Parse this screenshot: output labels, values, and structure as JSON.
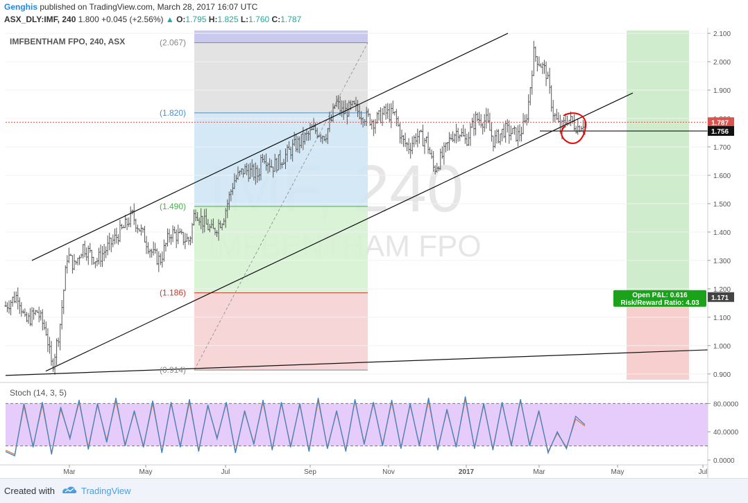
{
  "header": {
    "author": "Genghis",
    "published": " published on TradingView.com, March 28, 2017 16:07 UTC",
    "symbol": "ASX_DLY:IMF, 240",
    "last": "1.800",
    "change": "+0.045 (+2.56%)",
    "open_label": "O:",
    "open": "1.795",
    "high_label": "H:",
    "high": "1.825",
    "low_label": "L:",
    "low": "1.760",
    "close_label": "C:",
    "close": "1.787"
  },
  "chart_data": {
    "type": "candlestick",
    "symbol_title": "IMFBENTHAM FPO, 240, ASX",
    "watermark_main": "IMF, 240",
    "watermark_sub": "IMFBENTHAM FPO",
    "price_axis": {
      "ticks": [
        "2.100",
        "2.000",
        "1.900",
        "1.800",
        "1.700",
        "1.600",
        "1.500",
        "1.400",
        "1.300",
        "1.200",
        "1.100",
        "1.000",
        "0.900"
      ],
      "ylim": [
        0.88,
        2.11
      ]
    },
    "time_axis": {
      "ticks": [
        "Mar",
        "May",
        "Jul",
        "Sep",
        "Nov",
        "2017",
        "Mar",
        "May",
        "Jul"
      ],
      "bold_ticks": [
        "2017"
      ]
    },
    "price_labels": {
      "last": "1.787",
      "support": "1.756",
      "stop": "1.171"
    },
    "fib_levels": [
      {
        "label": "(2.067)",
        "value": 2.067
      },
      {
        "label": "(1.820)",
        "value": 1.82
      },
      {
        "label": "(1.490)",
        "value": 1.49
      },
      {
        "label": "(1.186)",
        "value": 1.186
      },
      {
        "label": "(0.914)",
        "value": 0.914
      }
    ],
    "position_box": {
      "open_pl": "Open P&L: 0.616",
      "risk_reward": "Risk/Reward Ratio: 4.03",
      "target": 2.1,
      "entry": 1.171,
      "stop": 0.89
    },
    "price_path": [
      [
        0.0,
        1.14
      ],
      [
        0.018,
        1.18
      ],
      [
        0.028,
        1.08
      ],
      [
        0.045,
        1.12
      ],
      [
        0.058,
        1.05
      ],
      [
        0.066,
        0.92
      ],
      [
        0.077,
        1.06
      ],
      [
        0.088,
        1.32
      ],
      [
        0.098,
        1.28
      ],
      [
        0.11,
        1.35
      ],
      [
        0.13,
        1.3
      ],
      [
        0.15,
        1.36
      ],
      [
        0.17,
        1.42
      ],
      [
        0.18,
        1.46
      ],
      [
        0.2,
        1.37
      ],
      [
        0.21,
        1.32
      ],
      [
        0.22,
        1.3
      ],
      [
        0.235,
        1.4
      ],
      [
        0.25,
        1.38
      ],
      [
        0.262,
        1.37
      ],
      [
        0.27,
        1.48
      ],
      [
        0.28,
        1.44
      ],
      [
        0.295,
        1.4
      ],
      [
        0.31,
        1.45
      ],
      [
        0.325,
        1.58
      ],
      [
        0.34,
        1.62
      ],
      [
        0.36,
        1.6
      ],
      [
        0.365,
        1.68
      ],
      [
        0.38,
        1.63
      ],
      [
        0.395,
        1.66
      ],
      [
        0.41,
        1.7
      ],
      [
        0.42,
        1.72
      ],
      [
        0.44,
        1.76
      ],
      [
        0.455,
        1.74
      ],
      [
        0.465,
        1.8
      ],
      [
        0.47,
        1.86
      ],
      [
        0.48,
        1.82
      ],
      [
        0.495,
        1.84
      ],
      [
        0.51,
        1.81
      ],
      [
        0.525,
        1.79
      ],
      [
        0.54,
        1.82
      ],
      [
        0.555,
        1.81
      ],
      [
        0.565,
        1.72
      ],
      [
        0.575,
        1.7
      ],
      [
        0.585,
        1.74
      ],
      [
        0.6,
        1.72
      ],
      [
        0.61,
        1.62
      ],
      [
        0.625,
        1.68
      ],
      [
        0.635,
        1.74
      ],
      [
        0.645,
        1.76
      ],
      [
        0.655,
        1.72
      ],
      [
        0.67,
        1.8
      ],
      [
        0.685,
        1.79
      ],
      [
        0.695,
        1.72
      ],
      [
        0.71,
        1.76
      ],
      [
        0.73,
        1.74
      ],
      [
        0.74,
        1.78
      ],
      [
        0.745,
        1.86
      ],
      [
        0.752,
        2.03
      ],
      [
        0.76,
        2.0
      ],
      [
        0.77,
        1.96
      ],
      [
        0.78,
        1.82
      ],
      [
        0.79,
        1.76
      ],
      [
        0.8,
        1.8
      ],
      [
        0.815,
        1.77
      ],
      [
        0.825,
        1.79
      ]
    ],
    "stochastic": {
      "label": "Stoch (14, 3, 5)",
      "ticks": [
        "80.0000",
        "40.0000",
        "0.0000"
      ],
      "upper_band": 80,
      "lower_band": 20,
      "k": [
        12,
        6,
        80,
        18,
        82,
        8,
        75,
        30,
        85,
        15,
        80,
        25,
        88,
        20,
        70,
        18,
        84,
        10,
        82,
        18,
        86,
        12,
        78,
        30,
        82,
        10,
        70,
        22,
        85,
        14,
        82,
        18,
        80,
        12,
        88,
        16,
        70,
        12,
        86,
        22,
        82,
        20,
        85,
        16,
        80,
        20,
        88,
        14,
        72,
        18,
        90,
        16,
        80,
        14,
        82,
        20,
        86,
        20,
        70,
        10,
        40,
        16,
        62,
        50
      ],
      "d": [
        14,
        8,
        76,
        20,
        78,
        10,
        72,
        32,
        82,
        18,
        78,
        28,
        84,
        22,
        68,
        20,
        80,
        12,
        80,
        20,
        82,
        14,
        76,
        32,
        80,
        12,
        68,
        24,
        82,
        16,
        80,
        20,
        78,
        14,
        84,
        18,
        68,
        14,
        84,
        24,
        80,
        22,
        82,
        18,
        78,
        22,
        84,
        16,
        70,
        20,
        86,
        18,
        78,
        16,
        80,
        22,
        84,
        22,
        68,
        12,
        38,
        18,
        58,
        48
      ]
    }
  }
}
